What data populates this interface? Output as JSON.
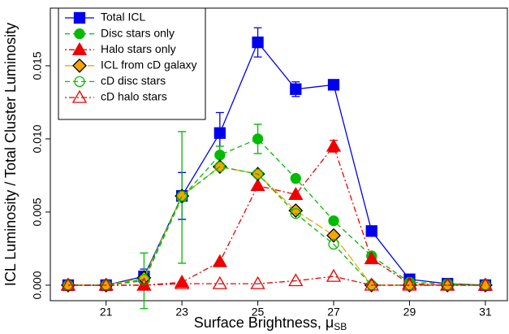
{
  "chart_data": {
    "type": "line",
    "xlabel": "Surface Brightness, μ",
    "xlabel_subscript": "SB",
    "ylabel": "ICL Luminosity / Total Cluster Luminosity",
    "x": [
      20,
      21,
      22,
      23,
      24,
      25,
      26,
      27,
      28,
      29,
      30,
      31
    ],
    "xlim": [
      19.53,
      31.58
    ],
    "xticks": [
      21,
      23,
      25,
      27,
      29,
      31
    ],
    "ylim": [
      -0.00106,
      0.01894
    ],
    "yticks": [
      {
        "value": 0,
        "label": "0.000"
      },
      {
        "value": 0.005,
        "label": "0.005"
      },
      {
        "value": 0.01,
        "label": "0.010"
      },
      {
        "value": 0.015,
        "label": "0.015"
      }
    ],
    "legend": "upper left",
    "series": [
      {
        "name": "Total ICL",
        "color": "#0000ee",
        "marker": "square",
        "filled": true,
        "dash": "solid",
        "values": [
          0,
          0,
          0.0006,
          0.0061,
          0.0104,
          0.0166,
          0.0134,
          0.0137,
          0.0037,
          0.0004,
          0.0001,
          0
        ],
        "errors": [
          0,
          0,
          0.0005,
          0.0016,
          0.0014,
          0.001,
          0.0005,
          0.0003,
          0.0002,
          0,
          0,
          0
        ]
      },
      {
        "name": "Disc stars only",
        "color": "#00bb00",
        "marker": "circle",
        "filled": true,
        "dash": "dashed",
        "values": [
          0,
          0,
          0.0003,
          0.006,
          0.0089,
          0.01,
          0.0073,
          0.0044,
          0.002,
          0.0002,
          0.0001,
          0
        ],
        "errors": [
          0,
          0,
          0.0019,
          0.0045,
          0.0006,
          0.001,
          0,
          0,
          0,
          0,
          0,
          0
        ]
      },
      {
        "name": "Halo stars only",
        "color": "#ee0000",
        "marker": "triangle",
        "filled": true,
        "dash": "dotdash",
        "values": [
          0,
          0,
          0,
          0.0002,
          0.0016,
          0.0068,
          0.0062,
          0.0095,
          0.0018,
          0.0001,
          0,
          0
        ],
        "errors": [
          0,
          0,
          0,
          0,
          0,
          0,
          0,
          0.0004,
          0,
          0,
          0,
          0
        ]
      },
      {
        "name": "ICL from cD galaxy",
        "color": "#f5a500",
        "marker": "diamond",
        "filled": true,
        "dash": "longdash",
        "values": [
          0,
          0,
          0.0005,
          0.0061,
          0.0081,
          0.0076,
          0.0051,
          0.0034,
          0,
          0,
          0,
          0
        ]
      },
      {
        "name": "cD disc stars",
        "color": "#00bb00",
        "marker": "circle",
        "filled": false,
        "dash": "dashed",
        "values": [
          0,
          0,
          0.0004,
          0.0061,
          0.0081,
          0.0076,
          0.0049,
          0.0028,
          0,
          0,
          0,
          0
        ]
      },
      {
        "name": "cD halo stars",
        "color": "#ee0000",
        "marker": "triangle",
        "filled": false,
        "dash": "dotdash",
        "values": [
          0,
          0,
          0,
          0.0001,
          0.0001,
          0.0001,
          0.0003,
          0.0006,
          0,
          0,
          0,
          0
        ]
      }
    ]
  }
}
